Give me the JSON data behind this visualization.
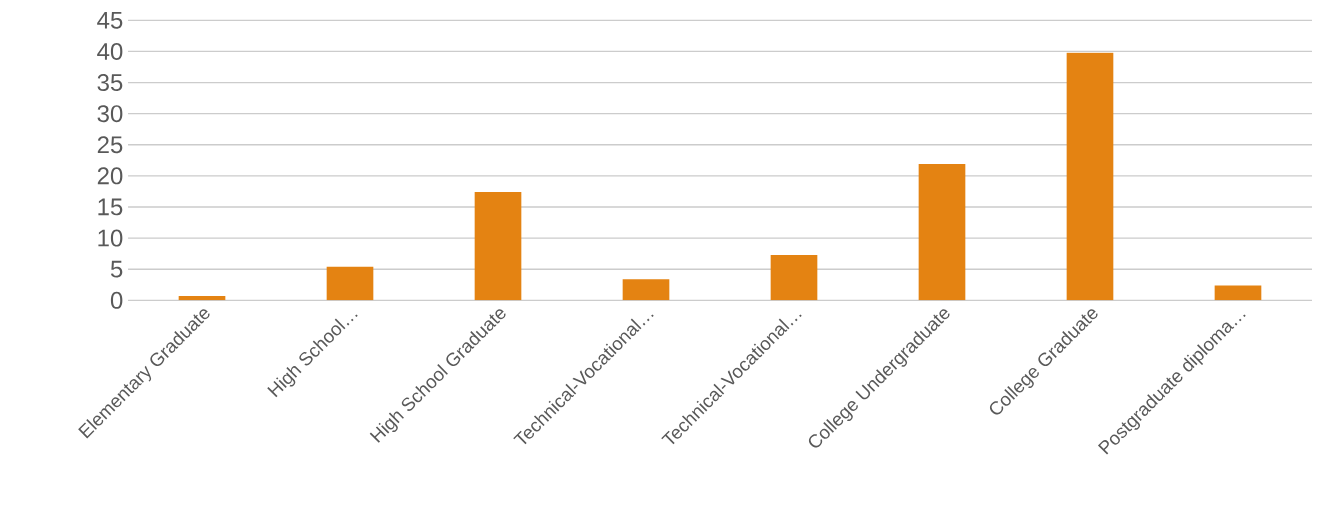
{
  "chart_data": {
    "type": "bar",
    "categories": [
      "Elementary Graduate",
      "High School…",
      "High School Graduate",
      "Technical-Vocational…",
      "Technical-Vocational…",
      "College Undergraduate",
      "College Graduate",
      "Postgraduate diploma…"
    ],
    "values": [
      0.7,
      5.4,
      17.4,
      3.4,
      7.3,
      21.9,
      39.8,
      2.4
    ],
    "color": "#e48312",
    "ylim": [
      0,
      45
    ],
    "yticks": [
      0,
      5,
      10,
      15,
      20,
      25,
      30,
      35,
      40,
      45
    ],
    "grid": "y"
  }
}
